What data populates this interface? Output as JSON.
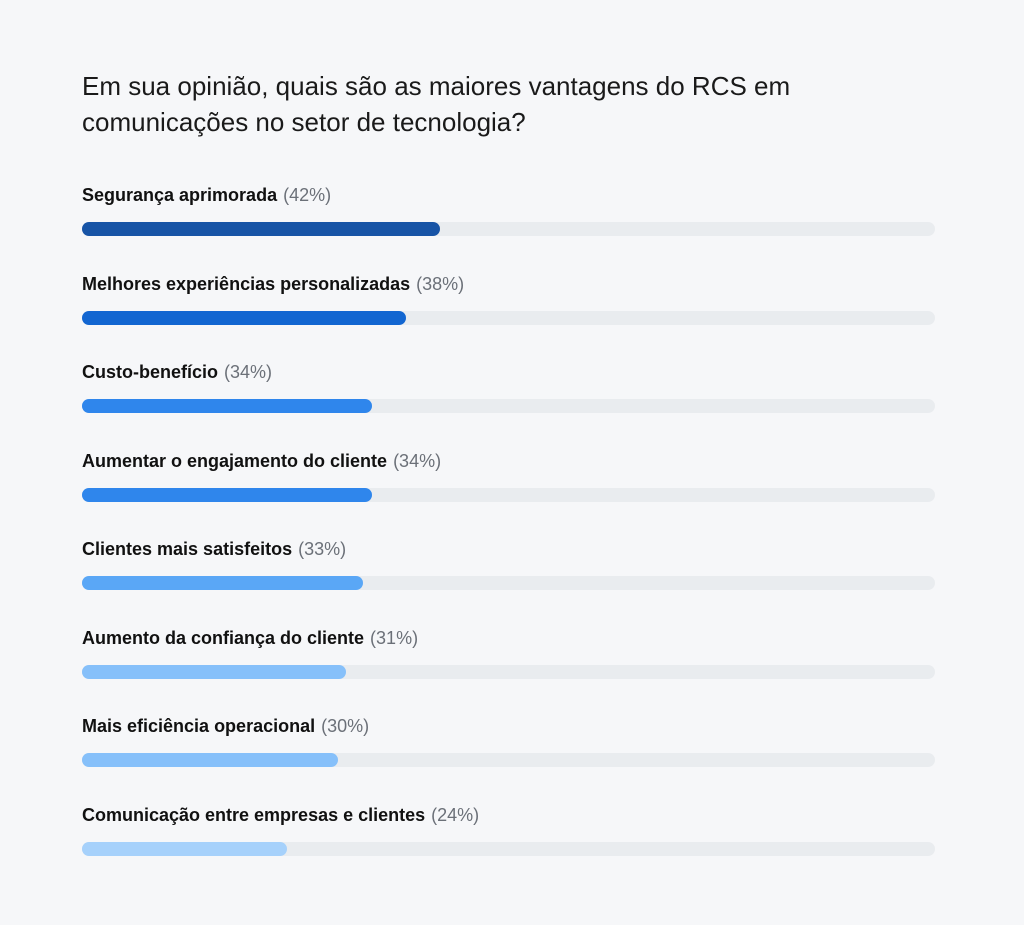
{
  "title": "Em sua opinião, quais são as maiores vantagens do RCS em comunicações no setor de tecnologia?",
  "items": [
    {
      "label": "Segurança aprimorada",
      "pct_text": "(42%)",
      "value": 42,
      "color": "#1754a6"
    },
    {
      "label": "Melhores experiências personalizadas",
      "pct_text": "(38%)",
      "value": 38,
      "color": "#1266d1"
    },
    {
      "label": "Custo-benefício",
      "pct_text": "(34%)",
      "value": 34,
      "color": "#2f86ec"
    },
    {
      "label": "Aumentar o engajamento do cliente",
      "pct_text": "(34%)",
      "value": 34,
      "color": "#2f86ec"
    },
    {
      "label": "Clientes mais satisfeitos",
      "pct_text": "(33%)",
      "value": 33,
      "color": "#5aa7f6"
    },
    {
      "label": "Aumento da confiança do cliente",
      "pct_text": "(31%)",
      "value": 31,
      "color": "#86c0fa"
    },
    {
      "label": "Mais eficiência operacional",
      "pct_text": "(30%)",
      "value": 30,
      "color": "#86c0fa"
    },
    {
      "label": "Comunicação entre empresas e clientes",
      "pct_text": "(24%)",
      "value": 24,
      "color": "#a6d1fb"
    }
  ],
  "chart_data": {
    "type": "bar",
    "orientation": "horizontal",
    "title": "Em sua opinião, quais são as maiores vantagens do RCS em comunicações no setor de tecnologia?",
    "categories": [
      "Segurança aprimorada",
      "Melhores experiências personalizadas",
      "Custo-benefício",
      "Aumentar o engajamento do cliente",
      "Clientes mais satisfeitos",
      "Aumento da confiança do cliente",
      "Mais eficiência operacional",
      "Comunicação entre empresas e clientes"
    ],
    "values": [
      42,
      38,
      34,
      34,
      33,
      31,
      30,
      24
    ],
    "unit": "%",
    "xlim": [
      0,
      100
    ],
    "grid": false,
    "legend": null
  }
}
